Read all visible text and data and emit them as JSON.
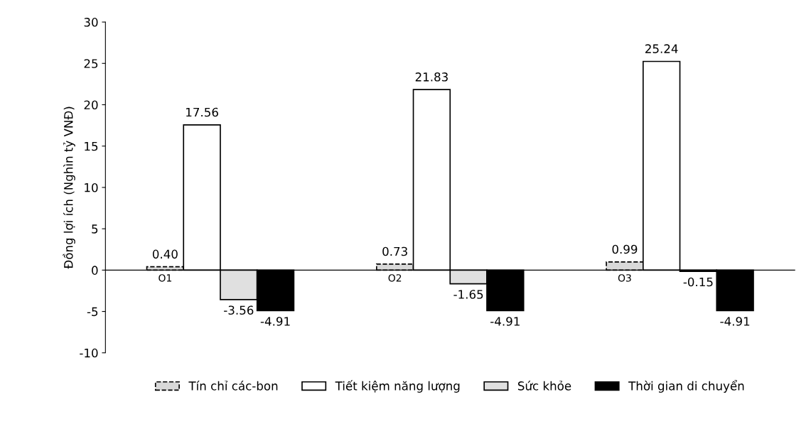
{
  "chart_data": {
    "type": "bar",
    "ylabel": "Đồng lợi ích (Nghìn tỷ VNĐ)",
    "categories": [
      "O1",
      "O2",
      "O3"
    ],
    "series": [
      {
        "name": "Tín chỉ các-bon",
        "color": "#d9d9d9",
        "values": [
          0.4,
          0.73,
          0.99
        ],
        "value_labels": [
          "0.40",
          "0.73",
          "0.99"
        ]
      },
      {
        "name": "Tiết kiệm năng lượng",
        "color": "#ffffff",
        "values": [
          17.56,
          21.83,
          25.24
        ],
        "value_labels": [
          "17.56",
          "21.83",
          "25.24"
        ]
      },
      {
        "name": "Sức khỏe",
        "color": "#e0e0e0",
        "values": [
          -3.56,
          -1.65,
          -0.15
        ],
        "value_labels": [
          "-3.56",
          "-1.65",
          "-0.15"
        ]
      },
      {
        "name": "Thời gian di chuyển",
        "color": "#000000",
        "values": [
          -4.91,
          -4.91,
          -4.91
        ],
        "value_labels": [
          "-4.91",
          "-4.91",
          "-4.91"
        ]
      }
    ],
    "ylim": [
      -10,
      30
    ],
    "yticks": [
      -10,
      -5,
      0,
      5,
      10,
      15,
      20,
      25,
      30
    ],
    "grid": false,
    "legend": "bottom"
  }
}
